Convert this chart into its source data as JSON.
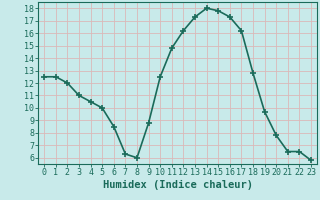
{
  "x": [
    0,
    1,
    2,
    3,
    4,
    5,
    6,
    7,
    8,
    9,
    10,
    11,
    12,
    13,
    14,
    15,
    16,
    17,
    18,
    19,
    20,
    21,
    22,
    23
  ],
  "y": [
    12.5,
    12.5,
    12.0,
    11.0,
    10.5,
    10.0,
    8.5,
    6.3,
    6.0,
    8.8,
    12.5,
    14.8,
    16.2,
    17.3,
    18.0,
    17.8,
    17.3,
    16.2,
    12.8,
    9.7,
    7.8,
    6.5,
    6.5,
    5.8
  ],
  "line_color": "#1a6b5a",
  "marker": "+",
  "marker_size": 4,
  "marker_linewidth": 1.2,
  "line_width": 1.2,
  "xlabel": "Humidex (Indice chaleur)",
  "xlim": [
    -0.5,
    23.5
  ],
  "ylim": [
    5.5,
    18.5
  ],
  "yticks": [
    6,
    7,
    8,
    9,
    10,
    11,
    12,
    13,
    14,
    15,
    16,
    17,
    18
  ],
  "xticks": [
    0,
    1,
    2,
    3,
    4,
    5,
    6,
    7,
    8,
    9,
    10,
    11,
    12,
    13,
    14,
    15,
    16,
    17,
    18,
    19,
    20,
    21,
    22,
    23
  ],
  "bg_color": "#c8eaea",
  "grid_color": "#dbb8b8",
  "label_fontsize": 7.5,
  "tick_fontsize": 6
}
